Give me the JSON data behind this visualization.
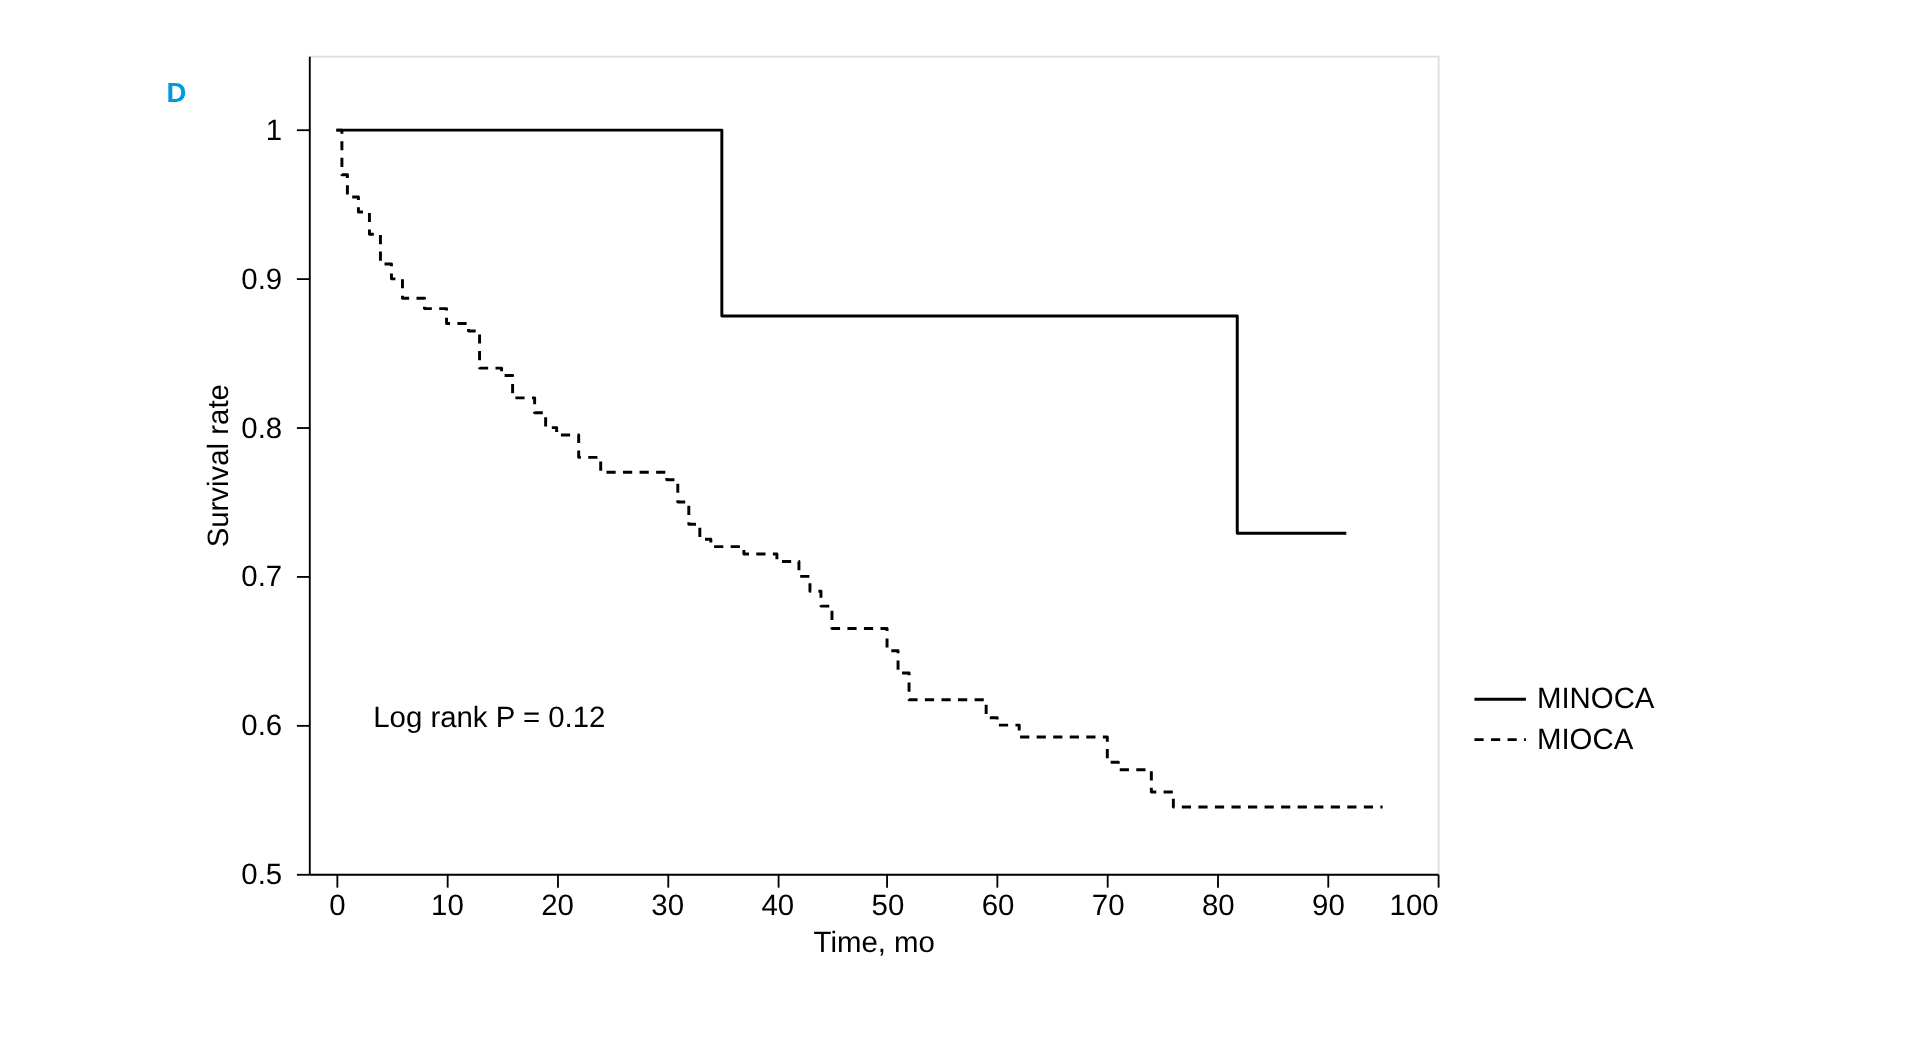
{
  "chart_data": {
    "type": "step",
    "xlabel": "Time, mo",
    "ylabel": "Survival rate",
    "annotations": [
      "D",
      "Log rank P = 0.12"
    ],
    "xlim": [
      -2.5,
      100
    ],
    "xticks": [
      0,
      10,
      20,
      30,
      40,
      50,
      60,
      70,
      80,
      90,
      100
    ],
    "ylim": [
      0.5,
      1.05
    ],
    "yticks": [
      0.5,
      0.6,
      0.7,
      0.8,
      0.9,
      1
    ],
    "grid": false,
    "legend": "right",
    "marker": "none",
    "series": [
      {
        "name": "MINOCA",
        "color": "#000000",
        "line_style": "solid",
        "x": [
          0,
          35,
          81.8,
          91.7
        ],
        "values": [
          1,
          0.875,
          0.729,
          0.729
        ]
      },
      {
        "name": "MIOCA",
        "color": "#000000",
        "line_style": "dashed",
        "x": [
          0,
          0.5,
          1,
          2,
          3,
          4,
          5,
          6,
          8,
          10,
          12,
          13,
          15,
          16,
          18,
          19,
          20,
          22,
          24,
          25,
          30,
          31,
          32,
          33,
          34,
          37,
          40,
          42,
          43,
          44,
          45,
          48,
          50,
          51,
          52,
          57,
          59,
          60,
          62,
          64,
          70,
          71,
          72,
          74,
          76,
          95
        ],
        "values": [
          1,
          0.97,
          0.955,
          0.945,
          0.93,
          0.91,
          0.9,
          0.887,
          0.88,
          0.87,
          0.865,
          0.84,
          0.835,
          0.82,
          0.81,
          0.8,
          0.795,
          0.78,
          0.77,
          0.77,
          0.765,
          0.75,
          0.735,
          0.725,
          0.72,
          0.715,
          0.71,
          0.7,
          0.69,
          0.68,
          0.665,
          0.665,
          0.65,
          0.635,
          0.617,
          0.617,
          0.605,
          0.6,
          0.592,
          0.592,
          0.575,
          0.57,
          0.57,
          0.555,
          0.545,
          0.545
        ]
      }
    ]
  }
}
